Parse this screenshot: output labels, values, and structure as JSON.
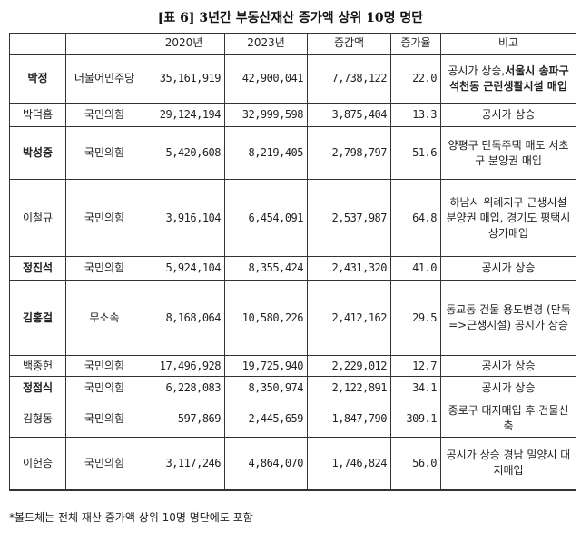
{
  "title": "[표 6] 3년간 부동산재산 증가액 상위 10명 명단",
  "headers": [
    "",
    "",
    "2020년",
    "2023년",
    "증감액",
    "증가율",
    "비고"
  ],
  "rows": [
    {
      "name": "박정",
      "bold": true,
      "party": "더불어민주당",
      "y2020": "35,161,919",
      "y2023": "42,900,041",
      "diff": "7,738,122",
      "rate": "22.0",
      "note": "공시가 상승,",
      "note_bold": "서울시 송파구 석천동 근린생활시설 매입"
    },
    {
      "name": "박덕흠",
      "bold": false,
      "party": "국민의힘",
      "y2020": "29,124,194",
      "y2023": "32,999,598",
      "diff": "3,875,404",
      "rate": "13.3",
      "note": "공시가 상승"
    },
    {
      "name": "박성중",
      "bold": true,
      "party": "국민의힘",
      "y2020": "5,420,608",
      "y2023": "8,219,405",
      "diff": "2,798,797",
      "rate": "51.6",
      "note": "양평구 단독주택 매도 서초구 분양권 매입"
    },
    {
      "name": "이철규",
      "bold": false,
      "party": "국민의힘",
      "y2020": "3,916,104",
      "y2023": "6,454,091",
      "diff": "2,537,987",
      "rate": "64.8",
      "note": "하남시 위례지구 근생시설 분양권 매입, 경기도 평택시 상가매입"
    },
    {
      "name": "정진석",
      "bold": true,
      "party": "국민의힘",
      "y2020": "5,924,104",
      "y2023": "8,355,424",
      "diff": "2,431,320",
      "rate": "41.0",
      "note": "공시가 상승"
    },
    {
      "name": "김홍걸",
      "bold": true,
      "party": "무소속",
      "y2020": "8,168,064",
      "y2023": "10,580,226",
      "diff": "2,412,162",
      "rate": "29.5",
      "note": "동교동 건물 용도변경 (단독=>근생시설) 공시가 상승"
    },
    {
      "name": "백종헌",
      "bold": false,
      "party": "국민의힘",
      "y2020": "17,496,928",
      "y2023": "19,725,940",
      "diff": "2,229,012",
      "rate": "12.7",
      "note": "공시가 상승"
    },
    {
      "name": "정점식",
      "bold": true,
      "party": "국민의힘",
      "y2020": "6,228,083",
      "y2023": "8,350,974",
      "diff": "2,122,891",
      "rate": "34.1",
      "note": "공시가 상승"
    },
    {
      "name": "김형동",
      "bold": false,
      "party": "국민의힘",
      "y2020": "597,869",
      "y2023": "2,445,659",
      "diff": "1,847,790",
      "rate": "309.1",
      "note": "종로구 대지매입 후 건물신축"
    },
    {
      "name": "이헌승",
      "bold": false,
      "party": "국민의힘",
      "y2020": "3,117,246",
      "y2023": "4,864,070",
      "diff": "1,746,824",
      "rate": "56.0",
      "note": "공시가 상승 경남 밀양시 대지매입"
    }
  ],
  "footnote": "*볼드체는 전체 재산 증가액 상위 10명 명단에도 포함"
}
